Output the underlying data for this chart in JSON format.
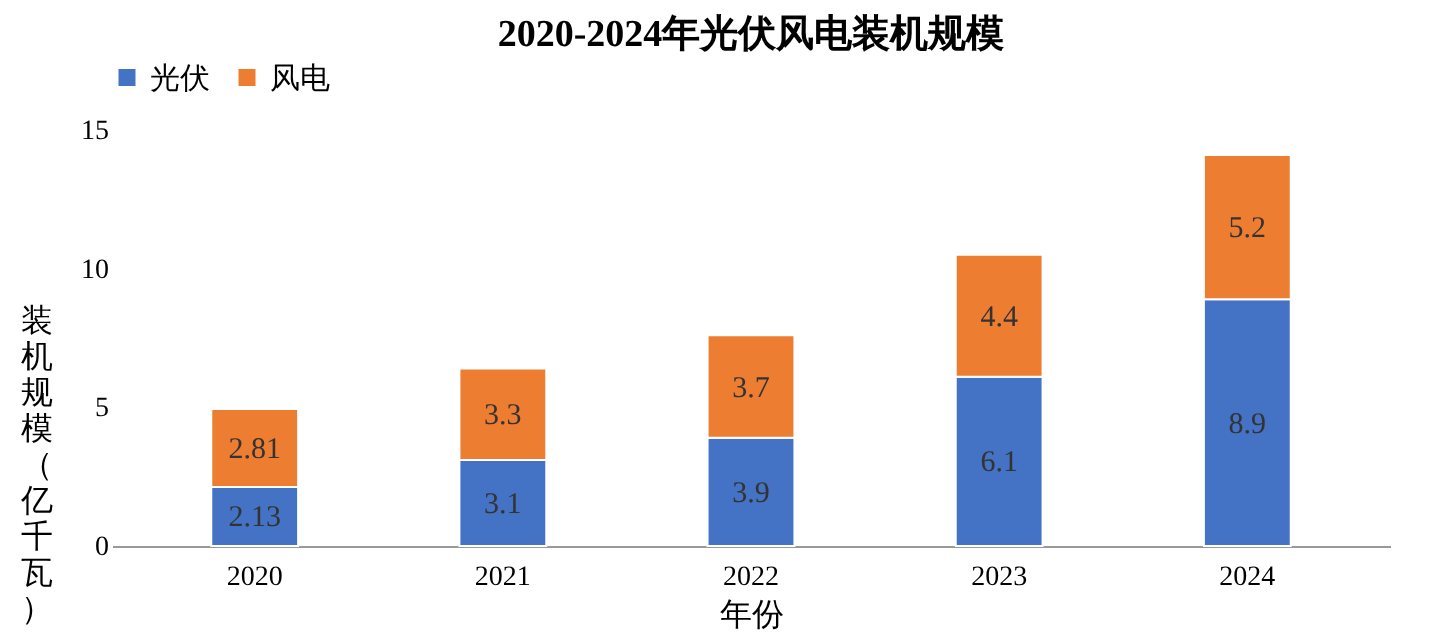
{
  "chart_data": {
    "type": "bar",
    "title": "2020-2024年光伏风电装机规模",
    "xlabel": "年份",
    "ylabel": "装机规模（亿千瓦）",
    "categories": [
      "2020",
      "2021",
      "2022",
      "2023",
      "2024"
    ],
    "series": [
      {
        "name": "光伏",
        "color": "#4472c4",
        "values": [
          2.13,
          3.1,
          3.9,
          6.1,
          8.9
        ]
      },
      {
        "name": "风电",
        "color": "#ed7d31",
        "values": [
          2.81,
          3.3,
          3.7,
          4.4,
          5.2
        ]
      }
    ],
    "stacked": true,
    "ylim": [
      0,
      15
    ],
    "yticks": [
      0,
      5,
      10,
      15
    ],
    "grid": false,
    "legend": "top",
    "data_labels": true
  }
}
